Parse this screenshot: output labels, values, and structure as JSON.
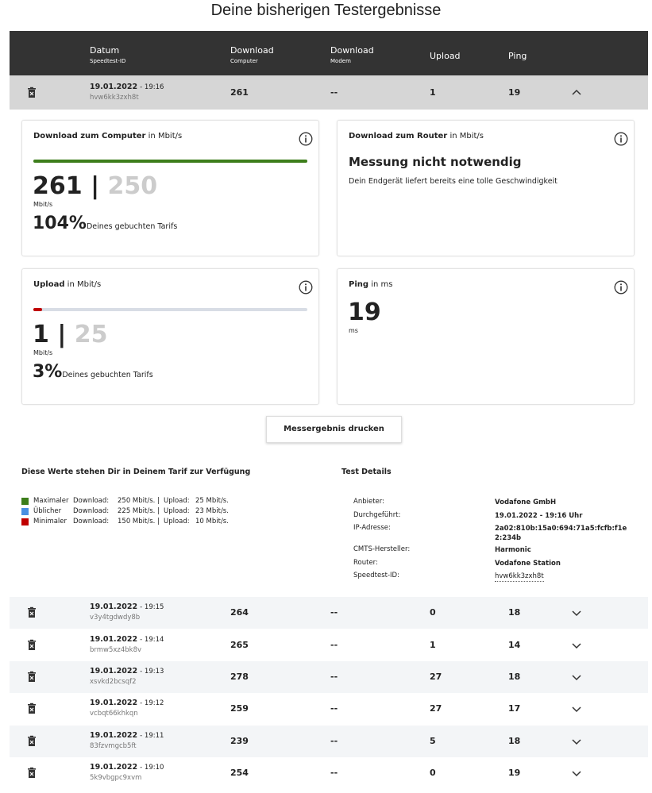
{
  "title": "Deine bisherigen Testergebnisse",
  "table": {
    "headers": [
      {
        "main": "Datum",
        "sub": "Speedtest-ID"
      },
      {
        "main": "Download",
        "sub": "Computer"
      },
      {
        "main": "Download",
        "sub": "Modem"
      },
      {
        "main": "Upload"
      },
      {
        "main": "Ping"
      }
    ],
    "rows": [
      {
        "date": "19.01.2022",
        "time": "- 19:16",
        "id": "hvw6kk3zxh8t",
        "download": 261,
        "modem": "--",
        "upload": 1,
        "ping": 19
      },
      {
        "date": "19.01.2022",
        "time": "- 19:15",
        "id": "v3y4tgdwdy8b",
        "download": 264,
        "modem": "--",
        "upload": 0,
        "ping": 18
      },
      {
        "date": "19.01.2022",
        "time": "- 19:14",
        "id": "brmw5xz4bk8v",
        "download": 265,
        "modem": "--",
        "upload": 1,
        "ping": 14
      },
      {
        "date": "19.01.2022",
        "time": "- 19:13",
        "id": "xsvkd2bcsqf2",
        "download": 278,
        "modem": "--",
        "upload": 27,
        "ping": 18
      },
      {
        "date": "19.01.2022",
        "time": "- 19:12",
        "id": "vcbqt66khkqn",
        "download": 259,
        "modem": "--",
        "upload": 27,
        "ping": 17
      },
      {
        "date": "19.01.2022",
        "time": "- 19:11",
        "id": "83fzvmgcb5ft",
        "download": 239,
        "modem": "--",
        "upload": 5,
        "ping": 18
      },
      {
        "date": "19.01.2022",
        "time": "- 19:10",
        "id": "5k9vbgpc9xvm",
        "download": 254,
        "modem": "--",
        "upload": 0,
        "ping": 19
      }
    ]
  },
  "cards": [
    {
      "title": "Download zum Computer",
      "unit_label": "in Mbit/s",
      "value": 261,
      "separator": "|",
      "booked": 250,
      "unit": "Mbit/s",
      "percent": "104%",
      "percent_text": "Deines gebuchten Tarifs"
    },
    {
      "title": "Download zum Router",
      "unit_label": "in Mbit/s",
      "heading": "Messung nicht notwendig",
      "text": "Dein Endgerät liefert bereits eine tolle Geschwindigkeit"
    },
    {
      "title": "Upload",
      "unit_label": "in Mbit/s",
      "value": 1,
      "separator": "|",
      "booked": 25,
      "unit": "Mbit/s",
      "percent": "3%",
      "percent_text": "Deines gebuchten Tarifs"
    },
    {
      "title": "Ping",
      "unit_label": "in ms",
      "value": 19,
      "unit": "ms"
    }
  ],
  "print_button": "Messergebnis drucken",
  "tariff": {
    "title": "Diese Werte stehen Dir in Deinem Tarif zur Verfügung",
    "rows": [
      {
        "name": "Maximaler",
        "color": "#3d7e1b",
        "download_label": "Download:",
        "download": "250 Mbit/s. |",
        "upload_label": "Upload:",
        "upload": "25 Mbit/s."
      },
      {
        "name": "Üblicher",
        "color": "#4a90e2",
        "download_label": "Download:",
        "download": "225 Mbit/s. |",
        "upload_label": "Upload:",
        "upload": "23 Mbit/s."
      },
      {
        "name": "Minimaler",
        "color": "#c00000",
        "download_label": "Download:",
        "download": "150 Mbit/s. |",
        "upload_label": "Upload:",
        "upload": "10 Mbit/s."
      }
    ]
  },
  "details": {
    "title": "Test Details",
    "rows": [
      {
        "label": "Anbieter:",
        "value": "Vodafone GmbH"
      },
      {
        "label": "Durchgeführt:",
        "value": "19.01.2022 - 19:16 Uhr"
      },
      {
        "label": "IP-Adresse:",
        "value": "2a02:810b:15a0:694:71a5:fcfb:f1e2:234b"
      },
      {
        "label": "CMTS-Hersteller:",
        "value": "Harmonic"
      },
      {
        "label": "Router:",
        "value": "Vodafone Station"
      },
      {
        "label": "Speedtest-ID:",
        "value": "hvw6kk3zxh8t"
      }
    ]
  }
}
